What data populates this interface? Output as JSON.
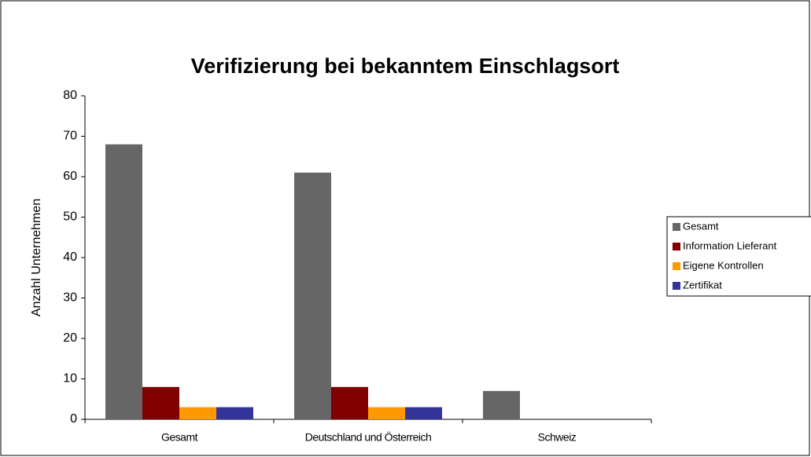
{
  "chart_data": {
    "type": "bar",
    "title": "Verifizierung bei bekanntem Einschlagsort",
    "y_label": "Anzahl Unternehmen",
    "categories": [
      "Gesamt",
      "Deutschland und Österreich",
      "Schweiz"
    ],
    "series": [
      {
        "name": "Gesamt",
        "color": "#666666",
        "values": [
          68,
          61,
          7
        ]
      },
      {
        "name": "Information Lieferant",
        "color": "#800000",
        "values": [
          8,
          8,
          0
        ]
      },
      {
        "name": "Eigene Kontrollen",
        "color": "#ff9900",
        "values": [
          3,
          3,
          0
        ]
      },
      {
        "name": "Zertifikat",
        "color": "#333399",
        "values": [
          3,
          3,
          0
        ]
      }
    ],
    "ylim": [
      0,
      80
    ],
    "yticks": [
      0,
      10,
      20,
      30,
      40,
      50,
      60,
      70,
      80
    ],
    "grid": false,
    "legend": "right"
  }
}
